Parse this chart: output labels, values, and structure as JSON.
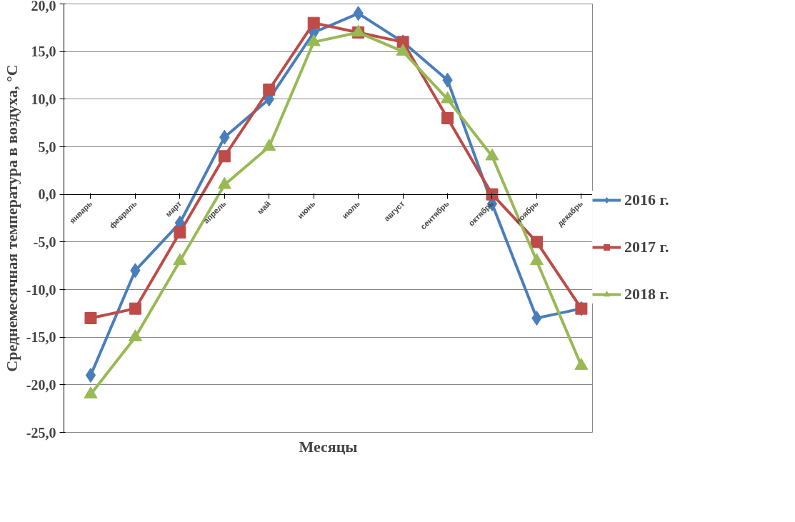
{
  "chart_data": {
    "type": "line",
    "xlabel": "Месяцы",
    "ylabel": "Среднемесячная температура в воздуха, °C",
    "categories": [
      "январь",
      "февраль",
      "март",
      "апрель",
      "май",
      "июнь",
      "июль",
      "август",
      "сентябрь",
      "октябрь",
      "ноябрь",
      "декабрь"
    ],
    "series": [
      {
        "name": "2016 г.",
        "color": "#4a7ebb",
        "marker": "diamond",
        "values": [
          -19,
          -8,
          -3,
          6,
          10,
          17,
          19,
          16,
          12,
          -1,
          -13,
          -12
        ]
      },
      {
        "name": "2017 г.",
        "color": "#be4b48",
        "marker": "square",
        "values": [
          -13,
          -12,
          -4,
          4,
          11,
          18,
          17,
          16,
          8,
          0,
          -5,
          -12
        ]
      },
      {
        "name": "2018 г.",
        "color": "#98b954",
        "marker": "triangle",
        "values": [
          -21,
          -15,
          -7,
          1,
          5,
          16,
          17,
          15,
          10,
          4,
          -7,
          -18
        ]
      }
    ],
    "ylim": [
      -25,
      20
    ],
    "yticks": [
      {
        "value": -25,
        "label": "-25,0"
      },
      {
        "value": -20,
        "label": "-20,0"
      },
      {
        "value": -15,
        "label": "-15,0"
      },
      {
        "value": -10,
        "label": "-10,0"
      },
      {
        "value": -5,
        "label": "-5,0"
      },
      {
        "value": 0,
        "label": "0,0"
      },
      {
        "value": 5,
        "label": "5,0"
      },
      {
        "value": 10,
        "label": "10,0"
      },
      {
        "value": 15,
        "label": "15,0"
      },
      {
        "value": 20,
        "label": "20,0"
      }
    ],
    "grid": "y",
    "legend": "right",
    "line_style": "solid"
  }
}
